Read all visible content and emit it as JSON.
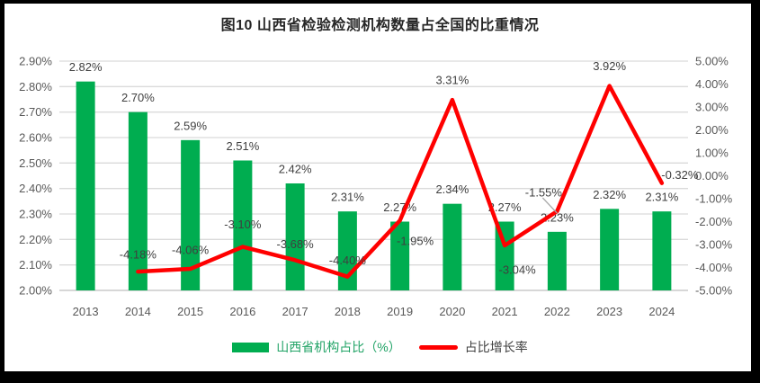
{
  "chart_data": {
    "type": "bar+line",
    "title": "图10  山西省检验检测机构数量占全国的比重情况",
    "categories": [
      "2013",
      "2014",
      "2015",
      "2016",
      "2017",
      "2018",
      "2019",
      "2020",
      "2021",
      "2022",
      "2023",
      "2024"
    ],
    "series": [
      {
        "name": "山西省机构占比（%）",
        "type": "bar",
        "axis": "left",
        "color": "#00AD50",
        "values": [
          2.82,
          2.7,
          2.59,
          2.51,
          2.42,
          2.31,
          2.27,
          2.34,
          2.27,
          2.23,
          2.32,
          2.31
        ],
        "labels": [
          "2.82%",
          "2.70%",
          "2.59%",
          "2.51%",
          "2.42%",
          "2.31%",
          "2.27%",
          "2.34%",
          "2.27%",
          "2.23%",
          "2.32%",
          "2.31%"
        ]
      },
      {
        "name": "占比增长率",
        "type": "line",
        "axis": "right",
        "color": "#FF0000",
        "values": [
          null,
          -4.18,
          -4.06,
          -3.1,
          -3.68,
          -4.4,
          -1.95,
          3.31,
          -3.04,
          -1.55,
          3.92,
          -0.32
        ],
        "labels": [
          null,
          "-4.18%",
          "-4.06%",
          "-3.10%",
          "-3.68%",
          "-4.40%",
          "-1.95%",
          "3.31%",
          "-3.04%",
          "-1.55%",
          "3.92%",
          "-0.32%"
        ],
        "label_offsets": [
          null,
          [
            0,
            -19
          ],
          [
            0,
            -21
          ],
          [
            0,
            -25
          ],
          [
            0,
            -18
          ],
          [
            0,
            -18
          ],
          [
            17,
            23
          ],
          [
            0,
            -22
          ],
          [
            14,
            27
          ],
          [
            -15,
            -21
          ],
          [
            0,
            -22
          ],
          [
            20,
            -9
          ]
        ],
        "leader_line": {
          "index": 9,
          "dx1": -16,
          "dy1": -15,
          "dx2": 0,
          "dy2": 2
        }
      }
    ],
    "axes": {
      "left": {
        "min": 2.0,
        "max": 2.9,
        "step": 0.1,
        "tick_labels": [
          "2.00%",
          "2.10%",
          "2.20%",
          "2.30%",
          "2.40%",
          "2.50%",
          "2.60%",
          "2.70%",
          "2.80%",
          "2.90%"
        ]
      },
      "right": {
        "min": -5.0,
        "max": 5.0,
        "step": 1.0,
        "tick_labels": [
          "-5.00%",
          "-4.00%",
          "-3.00%",
          "-2.00%",
          "-1.00%",
          "0.00%",
          "1.00%",
          "2.00%",
          "3.00%",
          "4.00%",
          "5.00%"
        ]
      }
    },
    "legend": {
      "position": "bottom",
      "entries": [
        {
          "label": "山西省机构占比（%）",
          "marker": "rect",
          "color": "#00AD50",
          "text_color": "#21A366"
        },
        {
          "label": "占比增长率",
          "marker": "line",
          "color": "#FF0000",
          "text_color": "#404040"
        }
      ]
    },
    "grid": true,
    "colors": {
      "grid": "#DADADA",
      "baseline": "#BFBFBF",
      "axis_text": "#595959",
      "data_label": "#3F3F3F",
      "title": "#262626",
      "leader": "#A6A6A6",
      "frame": "#000000"
    }
  }
}
